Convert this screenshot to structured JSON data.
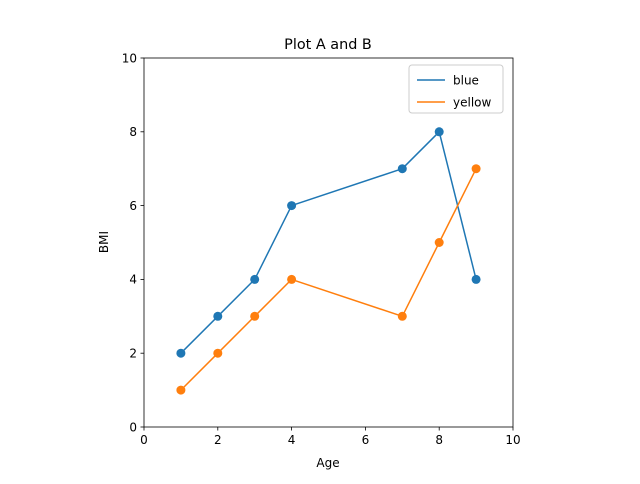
{
  "chart_data": {
    "type": "line",
    "title": "Plot A and B",
    "xlabel": "Age",
    "ylabel": "BMI",
    "xlim": [
      0,
      10
    ],
    "ylim": [
      0,
      10
    ],
    "xticks": [
      0,
      2,
      4,
      6,
      8,
      10
    ],
    "yticks": [
      0,
      2,
      4,
      6,
      8,
      10
    ],
    "grid": false,
    "legend_position": "top-right",
    "series": [
      {
        "name": "blue",
        "color": "#1f77b4",
        "marker": "circle",
        "x": [
          1,
          2,
          3,
          4,
          7,
          8,
          9
        ],
        "y": [
          2,
          3,
          4,
          6,
          7,
          8,
          4
        ]
      },
      {
        "name": "yellow",
        "color": "#ff7f0e",
        "marker": "circle",
        "x": [
          1,
          2,
          3,
          4,
          7,
          8,
          9
        ],
        "y": [
          1,
          2,
          3,
          4,
          3,
          5,
          7
        ]
      }
    ]
  }
}
